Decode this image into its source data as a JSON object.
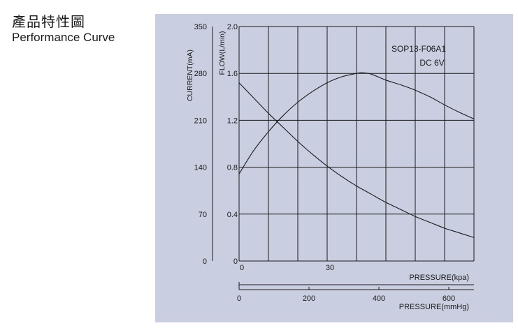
{
  "heading": {
    "title_zh": "產品特性圖",
    "title_en": "Performance Curve"
  },
  "colors": {
    "panel_background": "#c9cfe1",
    "grid_and_lines": "#1a1a1a"
  },
  "chart_data": {
    "type": "line",
    "title": "",
    "model_label": "SOP13-F06A1",
    "voltage_label": "DC 6V",
    "axes": {
      "current": {
        "label": "CURRENT(mA)",
        "min": 0,
        "max": 350,
        "ticks": [
          "0",
          "70",
          "140",
          "210",
          "280",
          "350"
        ]
      },
      "flow": {
        "label": "FLOW(L/min)",
        "min": 0,
        "max": 2.0,
        "ticks": [
          "0",
          "0.4",
          "0.8",
          "1.2",
          "1.6",
          "2.0"
        ]
      },
      "pressure_kpa": {
        "label": "PRESSURE(kpa)",
        "min": 0,
        "max": 80,
        "ticks": [
          "0",
          "30"
        ]
      },
      "pressure_mmhg": {
        "label": "PRESSURE(mmHg)",
        "min": 0,
        "max": 600,
        "ticks": [
          "0",
          "200",
          "400",
          "600"
        ]
      }
    },
    "grid": true,
    "series": [
      {
        "axis": "flow",
        "x": [
          0,
          5,
          10,
          15,
          20,
          25,
          30,
          35,
          40,
          45,
          50,
          55,
          60,
          65,
          70,
          75,
          80
        ],
        "values": [
          1.52,
          1.39,
          1.26,
          1.14,
          1.02,
          0.91,
          0.81,
          0.72,
          0.64,
          0.57,
          0.5,
          0.44,
          0.38,
          0.33,
          0.28,
          0.24,
          0.2
        ]
      },
      {
        "axis": "current",
        "x": [
          0,
          5,
          10,
          15,
          20,
          25,
          30,
          35,
          40,
          42,
          45,
          50,
          55,
          60,
          65,
          70,
          75,
          80
        ],
        "values": [
          130,
          165,
          193,
          217,
          237,
          253,
          266,
          275,
          280,
          281,
          279,
          270,
          263,
          255,
          245,
          233,
          222,
          212
        ]
      }
    ]
  }
}
